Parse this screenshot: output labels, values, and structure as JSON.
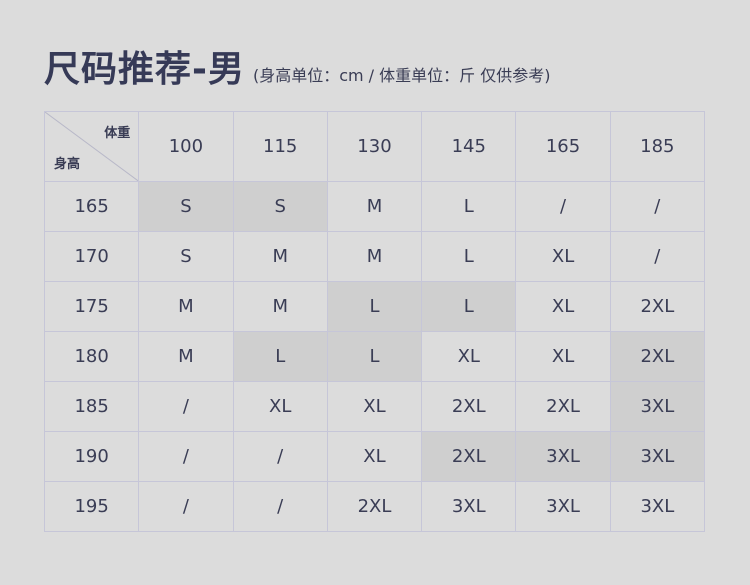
{
  "title": "尺码推荐-男",
  "subtitle": "(身高单位：cm / 体重单位：斤 仅供参考)",
  "corner": {
    "weight_label": "体重",
    "height_label": "身高"
  },
  "weights": [
    "100",
    "115",
    "130",
    "145",
    "165",
    "185"
  ],
  "rows": [
    {
      "height": "165",
      "sizes": [
        "S",
        "S",
        "M",
        "L",
        "/",
        "/"
      ],
      "highlight": [
        true,
        true,
        false,
        false,
        false,
        false
      ]
    },
    {
      "height": "170",
      "sizes": [
        "S",
        "M",
        "M",
        "L",
        "XL",
        "/"
      ],
      "highlight": [
        false,
        false,
        false,
        false,
        false,
        false
      ]
    },
    {
      "height": "175",
      "sizes": [
        "M",
        "M",
        "L",
        "L",
        "XL",
        "2XL"
      ],
      "highlight": [
        false,
        false,
        true,
        true,
        false,
        false
      ]
    },
    {
      "height": "180",
      "sizes": [
        "M",
        "L",
        "L",
        "XL",
        "XL",
        "2XL"
      ],
      "highlight": [
        false,
        true,
        true,
        false,
        false,
        true
      ]
    },
    {
      "height": "185",
      "sizes": [
        "/",
        "XL",
        "XL",
        "2XL",
        "2XL",
        "3XL"
      ],
      "highlight": [
        false,
        false,
        false,
        false,
        false,
        true
      ]
    },
    {
      "height": "190",
      "sizes": [
        "/",
        "/",
        "XL",
        "2XL",
        "3XL",
        "3XL"
      ],
      "highlight": [
        false,
        false,
        false,
        true,
        true,
        true
      ]
    },
    {
      "height": "195",
      "sizes": [
        "/",
        "/",
        "2XL",
        "3XL",
        "3XL",
        "3XL"
      ],
      "highlight": [
        false,
        false,
        false,
        false,
        false,
        false
      ]
    }
  ],
  "colors": {
    "background": "#dcdcdc",
    "highlight": "#cfcfcf",
    "border": "#c6c6d8",
    "text": "#3a3d55"
  }
}
